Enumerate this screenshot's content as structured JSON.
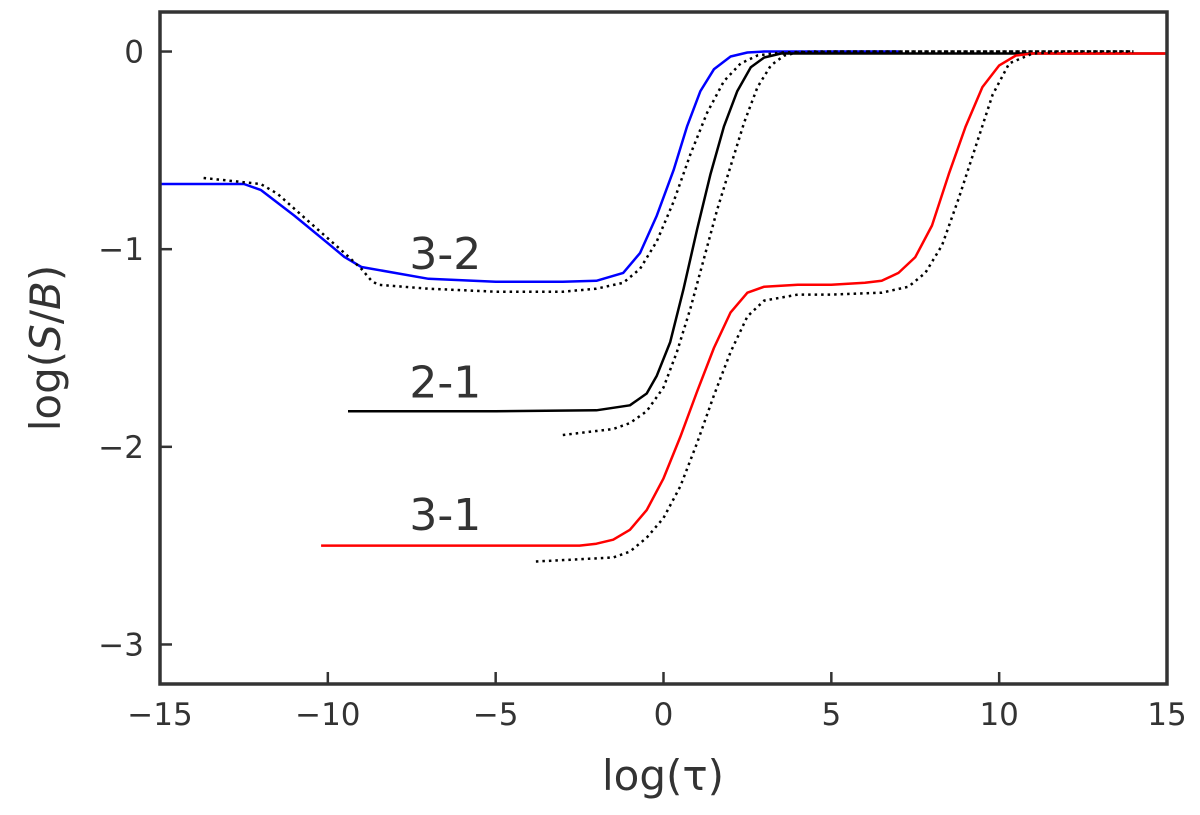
{
  "chart_data": {
    "type": "line",
    "xlabel": "log(τ)",
    "ylabel_parts": [
      "log(",
      "S",
      "/",
      "B",
      ")"
    ],
    "xlim": [
      -15,
      15
    ],
    "ylim": [
      -3.2,
      0.2
    ],
    "xticks": [
      -15,
      -10,
      -5,
      0,
      5,
      10,
      15
    ],
    "yticks": [
      0,
      -1,
      -2,
      -3
    ],
    "xtick_labels": [
      "−15",
      "−10",
      "−5",
      "0",
      "5",
      "10",
      "15"
    ],
    "ytick_labels": [
      "0",
      "−1",
      "−2",
      "−3"
    ],
    "grid": false,
    "annotations": [
      {
        "text": "3-2",
        "x": -6.5,
        "y": -1.1
      },
      {
        "text": "2-1",
        "x": -6.5,
        "y": -1.75
      },
      {
        "text": "3-1",
        "x": -6.5,
        "y": -2.42
      }
    ],
    "series": [
      {
        "id": "3-2-solid",
        "style": "solid",
        "color": "#0000ff",
        "x": [
          -15,
          -12.5,
          -12,
          -11,
          -10,
          -9.5,
          -9,
          -7,
          -5,
          -3,
          -2,
          -1.2,
          -0.7,
          -0.2,
          0.3,
          0.7,
          1.1,
          1.5,
          2,
          2.5,
          3,
          4,
          5,
          7
        ],
        "y": [
          -0.67,
          -0.67,
          -0.7,
          -0.83,
          -0.97,
          -1.04,
          -1.09,
          -1.15,
          -1.165,
          -1.165,
          -1.16,
          -1.12,
          -1.02,
          -0.83,
          -0.6,
          -0.38,
          -0.2,
          -0.09,
          -0.025,
          -0.005,
          0,
          0,
          0,
          0
        ]
      },
      {
        "id": "3-2-dotted",
        "style": "dotted",
        "color": "#000000",
        "x": [
          -13.7,
          -12,
          -11.5,
          -10.5,
          -9.5,
          -9,
          -8.7,
          -8.5,
          -7,
          -5,
          -3,
          -2,
          -1.2,
          -0.7,
          -0.2,
          0.3,
          0.8,
          1.3,
          1.8,
          2.3,
          2.8,
          3.5,
          4.5,
          6,
          9,
          12,
          14
        ],
        "y": [
          -0.64,
          -0.67,
          -0.72,
          -0.87,
          -1.02,
          -1.1,
          -1.16,
          -1.18,
          -1.2,
          -1.215,
          -1.215,
          -1.2,
          -1.17,
          -1.1,
          -0.96,
          -0.76,
          -0.52,
          -0.31,
          -0.15,
          -0.06,
          -0.02,
          -0.005,
          0,
          0,
          0,
          0,
          0
        ]
      },
      {
        "id": "2-1-solid",
        "style": "solid",
        "color": "#000000",
        "x": [
          -9.4,
          -5,
          -2,
          -1,
          -0.5,
          -0.2,
          0.2,
          0.6,
          1,
          1.4,
          1.8,
          2.2,
          2.6,
          3,
          3.5,
          4,
          6,
          9,
          12,
          15
        ],
        "y": [
          -1.82,
          -1.82,
          -1.815,
          -1.79,
          -1.73,
          -1.64,
          -1.47,
          -1.2,
          -0.9,
          -0.62,
          -0.38,
          -0.2,
          -0.08,
          -0.03,
          -0.01,
          -0.01,
          -0.01,
          -0.01,
          -0.01,
          -0.01
        ]
      },
      {
        "id": "2-1-dotted",
        "style": "dotted",
        "color": "#000000",
        "x": [
          -3,
          -1.5,
          -1,
          -0.5,
          0,
          0.4,
          0.8,
          1.2,
          1.6,
          2,
          2.4,
          2.8,
          3.2,
          3.6,
          4,
          5,
          8,
          11,
          14
        ],
        "y": [
          -1.94,
          -1.91,
          -1.88,
          -1.82,
          -1.7,
          -1.52,
          -1.3,
          -1.05,
          -0.8,
          -0.58,
          -0.36,
          -0.18,
          -0.07,
          -0.02,
          -0.005,
          0,
          0,
          0,
          0
        ]
      },
      {
        "id": "3-1-solid",
        "style": "solid",
        "color": "#ff0000",
        "x": [
          -10.2,
          -5,
          -2.5,
          -2,
          -1.5,
          -1,
          -0.5,
          0,
          0.5,
          1,
          1.5,
          2,
          2.5,
          3,
          4,
          5,
          6,
          6.5,
          7,
          7.5,
          8,
          8.5,
          9,
          9.5,
          10,
          10.5,
          11,
          12,
          15
        ],
        "y": [
          -2.5,
          -2.5,
          -2.5,
          -2.49,
          -2.47,
          -2.42,
          -2.32,
          -2.16,
          -1.95,
          -1.72,
          -1.5,
          -1.32,
          -1.22,
          -1.19,
          -1.18,
          -1.18,
          -1.17,
          -1.16,
          -1.12,
          -1.04,
          -0.88,
          -0.62,
          -0.38,
          -0.18,
          -0.07,
          -0.02,
          -0.01,
          -0.01,
          -0.01
        ]
      },
      {
        "id": "3-1-dotted",
        "style": "dotted",
        "color": "#000000",
        "x": [
          -3.8,
          -1.5,
          -1,
          -0.5,
          0,
          0.5,
          1,
          1.5,
          2,
          2.5,
          3,
          4,
          5,
          6.5,
          7.3,
          7.8,
          8.3,
          8.8,
          9.3,
          9.8,
          10.3,
          11,
          12,
          14
        ],
        "y": [
          -2.58,
          -2.56,
          -2.53,
          -2.46,
          -2.36,
          -2.2,
          -1.98,
          -1.74,
          -1.52,
          -1.34,
          -1.26,
          -1.23,
          -1.23,
          -1.22,
          -1.19,
          -1.12,
          -0.98,
          -0.74,
          -0.48,
          -0.22,
          -0.06,
          -0.01,
          0,
          0
        ]
      }
    ]
  }
}
